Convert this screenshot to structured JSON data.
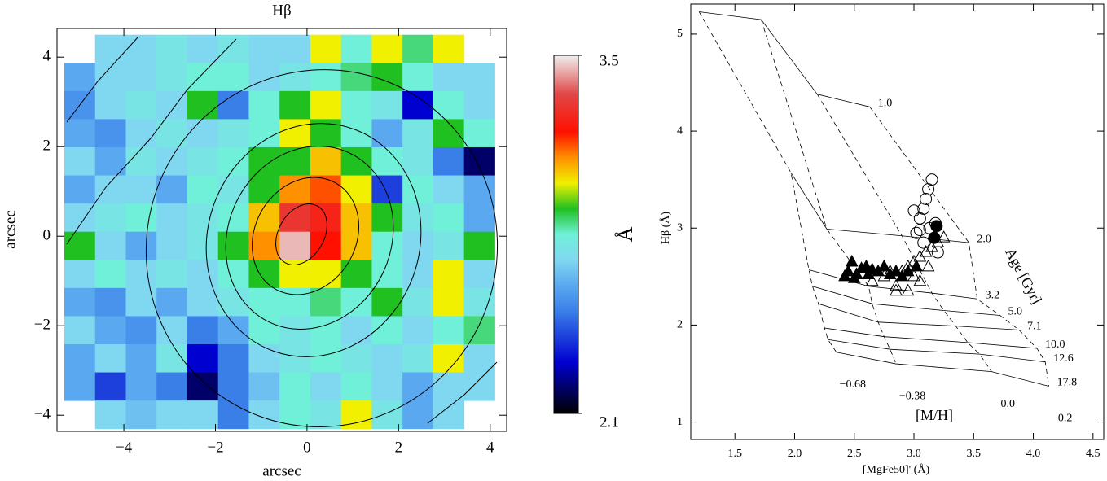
{
  "chart_data": [
    {
      "type": "heatmap",
      "title": "Hβ",
      "xlabel": "arcsec",
      "ylabel": "arcsec",
      "xlim": [
        -5.46,
        4.36
      ],
      "ylim": [
        -4.36,
        4.64
      ],
      "xticks": [
        {
          "value": -4,
          "label": "−4"
        },
        {
          "value": -2,
          "label": "−2"
        },
        0,
        2,
        4
      ],
      "yticks": [
        {
          "value": -4,
          "label": "−4"
        },
        {
          "value": -2,
          "label": "−2"
        },
        0,
        2,
        4
      ],
      "x_extent": [
        -5.3,
        4.1
      ],
      "y_extent": [
        4.5,
        -4.3
      ],
      "values": [
        [
          null,
          2.7,
          2.7,
          2.75,
          2.7,
          2.75,
          2.7,
          2.7,
          3.0,
          2.8,
          3.0,
          2.85,
          3.0,
          null
        ],
        [
          2.6,
          2.7,
          2.7,
          2.75,
          2.8,
          2.8,
          2.7,
          2.75,
          2.8,
          2.85,
          2.9,
          2.8,
          2.7,
          2.7
        ],
        [
          2.55,
          2.7,
          2.75,
          2.7,
          2.9,
          2.5,
          2.8,
          2.9,
          3.0,
          2.8,
          2.75,
          2.3,
          2.8,
          2.7
        ],
        [
          2.6,
          2.55,
          2.7,
          2.75,
          2.7,
          2.75,
          2.8,
          3.0,
          2.9,
          2.8,
          2.6,
          2.75,
          2.9,
          2.8
        ],
        [
          2.7,
          2.6,
          2.75,
          2.7,
          2.75,
          2.8,
          2.9,
          2.9,
          3.05,
          2.9,
          2.8,
          2.75,
          2.5,
          2.2
        ],
        [
          2.6,
          2.7,
          2.7,
          2.6,
          2.8,
          2.75,
          2.9,
          3.1,
          3.15,
          3.0,
          2.4,
          2.8,
          2.7,
          2.6
        ],
        [
          2.7,
          2.75,
          2.8,
          2.7,
          2.75,
          2.8,
          3.05,
          3.3,
          3.25,
          3.05,
          2.9,
          2.75,
          2.8,
          2.6
        ],
        [
          2.9,
          2.7,
          2.6,
          2.7,
          2.75,
          2.9,
          3.1,
          3.45,
          3.2,
          3.05,
          2.8,
          2.7,
          2.75,
          2.9
        ],
        [
          2.7,
          2.8,
          2.7,
          2.75,
          2.7,
          2.8,
          2.9,
          3.0,
          3.0,
          2.9,
          2.8,
          2.7,
          3.0,
          2.7
        ],
        [
          2.6,
          2.55,
          2.7,
          2.6,
          2.7,
          2.75,
          2.8,
          2.8,
          2.85,
          2.8,
          2.9,
          2.75,
          3.0,
          2.75
        ],
        [
          2.7,
          2.6,
          2.55,
          2.7,
          2.5,
          2.6,
          2.8,
          2.75,
          2.8,
          2.7,
          2.8,
          2.7,
          2.8,
          2.85
        ],
        [
          2.6,
          2.7,
          2.6,
          2.75,
          2.3,
          2.5,
          2.7,
          2.75,
          2.8,
          2.75,
          2.7,
          2.75,
          3.0,
          2.7
        ],
        [
          2.6,
          2.4,
          2.6,
          2.5,
          2.2,
          2.5,
          2.65,
          2.8,
          2.7,
          2.8,
          2.7,
          2.6,
          2.7,
          2.7
        ],
        [
          null,
          2.7,
          2.65,
          2.7,
          2.7,
          2.5,
          2.7,
          2.8,
          2.75,
          3.0,
          2.75,
          2.6,
          2.7,
          null
        ]
      ],
      "colorbar": {
        "label": "Å",
        "range": [
          2.1,
          3.5
        ],
        "ticks": [
          3.5,
          2.1
        ],
        "colormap": [
          [
            2.1,
            "#000000"
          ],
          [
            2.3,
            "#0000d0"
          ],
          [
            2.5,
            "#3a7fe8"
          ],
          [
            2.6,
            "#5aa8f0"
          ],
          [
            2.7,
            "#80d8f0"
          ],
          [
            2.8,
            "#70f0d8"
          ],
          [
            2.9,
            "#20c020"
          ],
          [
            3.0,
            "#f0f000"
          ],
          [
            3.1,
            "#ff9000"
          ],
          [
            3.2,
            "#ff1000"
          ],
          [
            3.35,
            "#e04848"
          ],
          [
            3.5,
            "#f0f0f0"
          ]
        ]
      }
    },
    {
      "type": "scatter",
      "xlabel": "[MgFe50]' (Å)",
      "ylabel": "Hβ (Å)",
      "xlim": [
        1.13,
        4.59
      ],
      "ylim": [
        0.82,
        5.31
      ],
      "xticks": [
        1.5,
        {
          "value": 2,
          "label": "2.0"
        },
        2.5,
        {
          "value": 3,
          "label": "3.0"
        },
        3.5,
        {
          "value": 4,
          "label": "4.0"
        },
        4.5
      ],
      "yticks": [
        1,
        2,
        3,
        4,
        5
      ],
      "grid_title_age": "Age [Gyr]",
      "grid_title_metal": "[M/H]",
      "model_grid": {
        "ages": [
          "1.0",
          "2.0",
          "3.2",
          "5.0",
          "7.1",
          "10.0",
          "12.6",
          "17.8"
        ],
        "metallicities": [
          "−0.68",
          "−0.38",
          "0.0",
          "0.2"
        ],
        "mgfe": [
          [
            1.2,
            1.72,
            2.19,
            2.63
          ],
          [
            1.97,
            2.27,
            2.9,
            3.46
          ],
          [
            2.12,
            2.62,
            3.15,
            3.53
          ],
          [
            2.15,
            2.65,
            3.25,
            3.72
          ],
          [
            2.2,
            2.7,
            3.35,
            3.88
          ],
          [
            2.25,
            2.75,
            3.45,
            4.03
          ],
          [
            2.28,
            2.8,
            3.55,
            4.1
          ],
          [
            2.35,
            2.85,
            3.65,
            4.13
          ]
        ],
        "hb": [
          [
            5.23,
            5.15,
            4.38,
            4.25
          ],
          [
            3.57,
            2.99,
            2.92,
            2.85
          ],
          [
            2.57,
            2.4,
            2.33,
            2.27
          ],
          [
            2.4,
            2.22,
            2.15,
            2.1
          ],
          [
            2.22,
            2.03,
            1.99,
            1.95
          ],
          [
            1.97,
            1.88,
            1.82,
            1.76
          ],
          [
            1.85,
            1.75,
            1.7,
            1.62
          ],
          [
            1.72,
            1.6,
            1.52,
            1.37
          ]
        ]
      },
      "series": [
        {
          "marker": "circle",
          "filled": false,
          "color": "#000000",
          "x": [
            3.02,
            3.05,
            3.08,
            3.1,
            3.12,
            3.15,
            3.0,
            3.08,
            3.18,
            3.2,
            3.13,
            3.05
          ],
          "values": [
            2.95,
            3.1,
            3.2,
            3.3,
            3.4,
            3.5,
            3.18,
            2.85,
            3.05,
            2.75,
            3.0,
            2.98
          ]
        },
        {
          "marker": "circle",
          "filled": true,
          "color": "#000000",
          "x": [
            3.19,
            3.17
          ],
          "values": [
            3.02,
            2.9
          ]
        },
        {
          "marker": "triangle",
          "filled": false,
          "color": "#000000",
          "x": [
            2.65,
            2.75,
            2.85,
            2.9,
            2.95,
            3.0,
            3.05,
            3.1,
            3.15,
            3.2,
            3.25,
            2.85,
            2.95,
            3.05,
            3.12,
            2.8,
            3.0
          ],
          "values": [
            2.45,
            2.5,
            2.4,
            2.55,
            2.6,
            2.65,
            2.7,
            2.75,
            2.8,
            2.85,
            2.9,
            2.35,
            2.35,
            2.45,
            2.6,
            2.55,
            2.5
          ]
        },
        {
          "marker": "triangle",
          "filled": true,
          "color": "#000000",
          "x": [
            2.42,
            2.45,
            2.48,
            2.52,
            2.56,
            2.6,
            2.65,
            2.7,
            2.75,
            2.8,
            2.85,
            2.9,
            2.95,
            3.02,
            2.5,
            2.62
          ],
          "values": [
            2.5,
            2.55,
            2.65,
            2.52,
            2.58,
            2.6,
            2.57,
            2.55,
            2.6,
            2.52,
            2.55,
            2.5,
            2.55,
            2.6,
            2.48,
            2.52
          ]
        }
      ]
    }
  ]
}
